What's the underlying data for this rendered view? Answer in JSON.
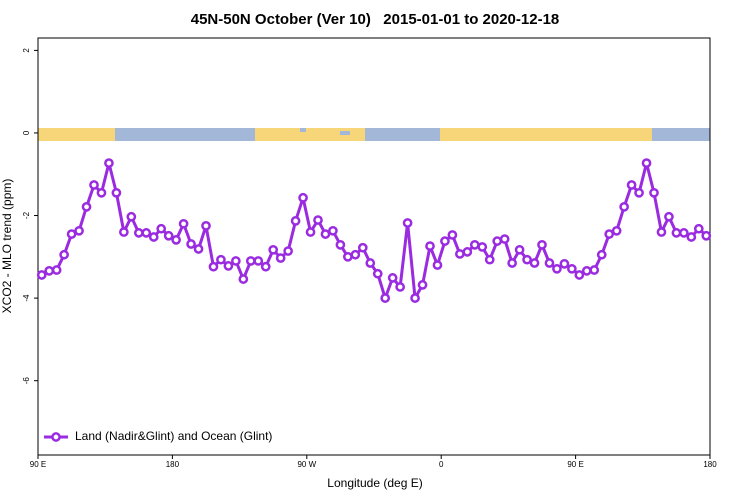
{
  "chart_data": {
    "type": "line",
    "title": "45N-50N October (Ver 10)   2015-01-01 to 2020-12-18",
    "x_label": "Longitude (deg E)",
    "y_label": "XCO2 - MLO trend (ppm)",
    "xlim": [
      90,
      540
    ],
    "xticks": [
      {
        "value": 90,
        "label": "90 E"
      },
      180,
      {
        "value": 270,
        "label": "90 W"
      },
      {
        "value": 360,
        "label": "0"
      },
      {
        "value": 450,
        "label": "90 E"
      },
      {
        "value": 540,
        "label": "180"
      }
    ],
    "ylim": [
      -7.8,
      2.3
    ],
    "yticks": [
      2,
      0,
      -2,
      -4,
      -6
    ],
    "legend": "bottom-left",
    "x": [
      92.5,
      97.5,
      102.5,
      107.5,
      112.5,
      117.5,
      122.5,
      127.5,
      132.5,
      137.5,
      142.5,
      147.5,
      152.5,
      157.5,
      162.5,
      167.5,
      172.5,
      177.5,
      182.5,
      187.5,
      192.5,
      197.5,
      202.5,
      207.5,
      212.5,
      217.5,
      222.5,
      227.5,
      232.5,
      237.5,
      242.5,
      247.5,
      252.5,
      257.5,
      262.5,
      267.5,
      272.5,
      277.5,
      282.5,
      287.5,
      292.5,
      297.5,
      302.5,
      307.5,
      312.5,
      317.5,
      322.5,
      327.5,
      332.5,
      337.5,
      342.5,
      347.5,
      352.5,
      357.5,
      362.5,
      367.5,
      372.5,
      377.5,
      382.5,
      387.5,
      392.5,
      397.5,
      402.5,
      407.5,
      412.5,
      417.5,
      422.5,
      427.5,
      432.5,
      437.5,
      442.5,
      447.5,
      452.5,
      457.5,
      462.5,
      467.5,
      472.5,
      477.5,
      482.5,
      487.5,
      492.5,
      497.5,
      502.5,
      507.5,
      512.5,
      517.5,
      522.5,
      527.5,
      532.5,
      537.5
    ],
    "series": [
      {
        "name": "Land (Nadir&Glint) and Ocean (Glint)",
        "color": "#9b2be0",
        "values": [
          -3.44,
          -3.34,
          -3.32,
          -2.95,
          -2.45,
          -2.37,
          -1.79,
          -1.26,
          -1.45,
          -0.73,
          -1.45,
          -2.4,
          -2.03,
          -2.42,
          -2.42,
          -2.52,
          -2.32,
          -2.49,
          -2.59,
          -2.2,
          -2.69,
          -2.81,
          -2.25,
          -3.24,
          -3.07,
          -3.22,
          -3.1,
          -3.54,
          -3.1,
          -3.1,
          -3.24,
          -2.83,
          -3.03,
          -2.86,
          -2.13,
          -1.57,
          -2.4,
          -2.11,
          -2.45,
          -2.37,
          -2.71,
          -3.0,
          -2.95,
          -2.78,
          -3.15,
          -3.41,
          -4.0,
          -3.51,
          -3.73,
          -2.18,
          -4.0,
          -3.68,
          -2.74,
          -3.2,
          -2.62,
          -2.47,
          -2.93,
          -2.88,
          -2.71,
          -2.76,
          -3.07,
          -2.62,
          -2.57,
          -3.15,
          -2.83,
          -3.07,
          -3.15,
          -2.71,
          -3.15,
          -3.29,
          -3.17,
          -3.29,
          -3.44,
          -3.34,
          -3.32,
          -2.95,
          -2.45,
          -2.37,
          -1.79,
          -1.26,
          -1.45,
          -0.73,
          -1.45,
          -2.4,
          -2.03,
          -2.42,
          -2.42,
          -2.52,
          -2.32,
          -2.49
        ]
      }
    ]
  }
}
